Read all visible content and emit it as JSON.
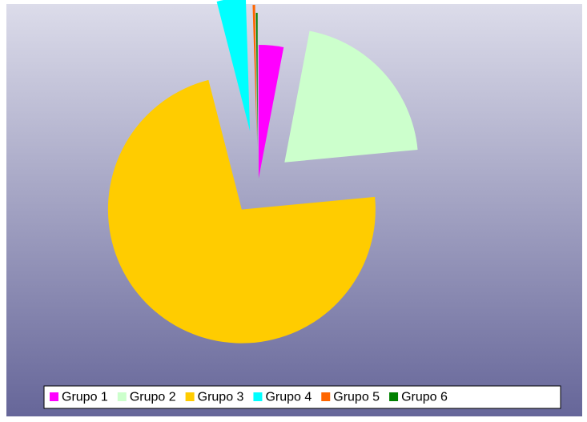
{
  "chart_data": {
    "type": "pie",
    "categories": [
      "Grupo 1",
      "Grupo 2",
      "Grupo 3",
      "Grupo 4",
      "Grupo 5",
      "Grupo 6"
    ],
    "values": [
      3,
      20.5,
      72.5,
      3.5,
      0.3,
      0.2
    ],
    "colors": [
      "#ff00ff",
      "#ccffcc",
      "#ffcc00",
      "#00ffff",
      "#ff6600",
      "#008000"
    ],
    "legend": "bottom"
  }
}
